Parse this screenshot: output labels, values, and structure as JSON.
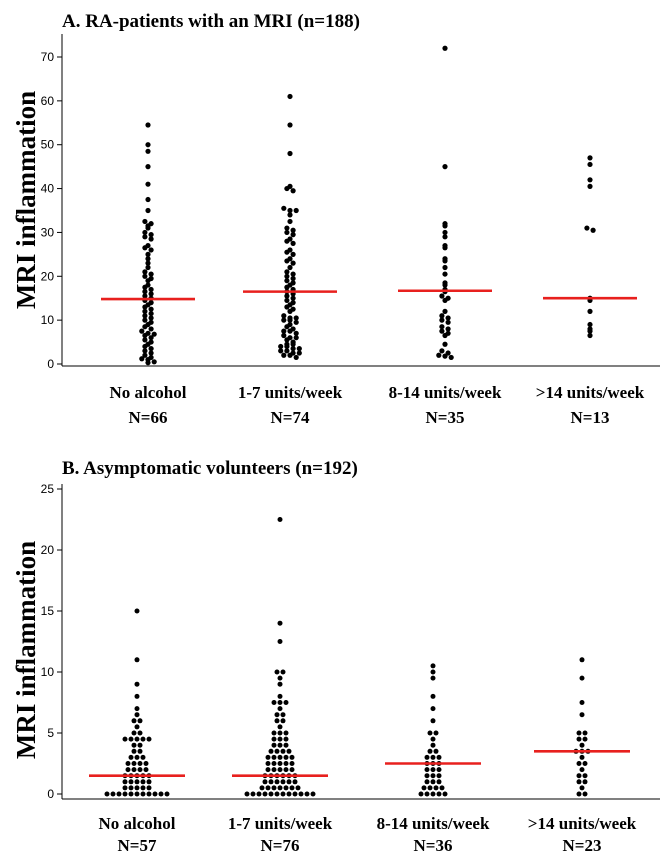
{
  "chart_data": [
    {
      "type": "scatter",
      "title": "A. RA-patients with an MRI (n=188)",
      "xlabel": "",
      "ylabel": "MRI inflammation",
      "ylim": [
        0,
        75
      ],
      "yticks": [
        0,
        10,
        20,
        30,
        40,
        50,
        60,
        70
      ],
      "grid": false,
      "legend": "none",
      "dot_color": "#000000",
      "median_color": "#e8201e",
      "categories": [
        {
          "label": "No alcohol",
          "count_label": "N=66",
          "median": 14.8,
          "values": [
            54.5,
            50,
            48.5,
            45,
            41,
            37.5,
            35,
            32.5,
            32,
            31.5,
            31,
            30,
            29.5,
            29,
            28.5,
            27,
            26.5,
            26,
            25,
            24,
            23,
            22,
            21,
            20.5,
            20,
            19.5,
            19,
            18,
            17.5,
            17,
            16.5,
            16,
            15.5,
            15,
            14.5,
            14,
            13.5,
            13,
            12.5,
            12,
            11.5,
            11,
            10.5,
            10,
            9.5,
            9,
            8.5,
            8,
            7.5,
            7,
            6.8,
            6.5,
            6,
            5.5,
            5,
            4.5,
            4,
            3.5,
            3,
            2.5,
            2,
            1.5,
            1.2,
            1,
            0.5,
            0.3
          ]
        },
        {
          "label": "1-7 units/week",
          "count_label": "N=74",
          "median": 16.5,
          "values": [
            61,
            54.5,
            48,
            40.5,
            40,
            39.5,
            35.5,
            35,
            35,
            34,
            32.5,
            31,
            30.5,
            30,
            29.5,
            28.5,
            28,
            27.5,
            26,
            25.5,
            25,
            24,
            23.5,
            23,
            22,
            21,
            20.5,
            20,
            19.5,
            19,
            18.5,
            18,
            17.5,
            17,
            16.5,
            16,
            15.5,
            15,
            14.5,
            14,
            13.5,
            13,
            12.5,
            12,
            11,
            10.5,
            10.5,
            10,
            10,
            9.5,
            9,
            8.5,
            8,
            7.5,
            7.5,
            7,
            6.5,
            6,
            6,
            5.5,
            5,
            4.5,
            4.5,
            4,
            4,
            3.5,
            3.5,
            3,
            3,
            2.5,
            2.5,
            2,
            2,
            1.5
          ]
        },
        {
          "label": "8-14 units/week",
          "count_label": "N=35",
          "median": 16.7,
          "values": [
            72,
            45,
            32,
            31.5,
            30,
            29,
            27,
            26.5,
            24,
            23.5,
            22,
            20.5,
            18.5,
            18,
            17,
            16.5,
            15.5,
            15,
            14.5,
            12,
            11,
            10.5,
            10,
            9.5,
            8.5,
            8,
            7.5,
            7,
            6.5,
            4.5,
            3,
            2.5,
            2,
            1.8,
            1.5
          ]
        },
        {
          "label": ">14 units/week",
          "count_label": "N=13",
          "median": 15,
          "values": [
            47,
            45.5,
            42,
            40.5,
            31,
            30.5,
            15,
            14.5,
            12,
            9,
            8,
            7.5,
            6.5
          ]
        }
      ]
    },
    {
      "type": "scatter",
      "title": "B. Asymptomatic volunteers (n=192)",
      "xlabel": "",
      "ylabel": "MRI inflammation",
      "ylim": [
        0,
        25
      ],
      "yticks": [
        0,
        5,
        10,
        15,
        20,
        25
      ],
      "grid": false,
      "legend": "none",
      "dot_color": "#000000",
      "median_color": "#e8201e",
      "categories": [
        {
          "label": "No alcohol",
          "count_label": "N=57",
          "median": 1.5,
          "values": [
            15,
            11,
            9,
            8,
            7,
            6.5,
            6,
            6,
            5.5,
            5,
            5,
            4.5,
            4.5,
            4.5,
            4.5,
            4.5,
            4,
            4,
            3.5,
            3.5,
            3,
            3,
            3,
            2.5,
            2.5,
            2.5,
            2.5,
            2,
            2,
            2,
            2,
            1.5,
            1.5,
            1.5,
            1.5,
            1.5,
            1,
            1,
            1,
            1,
            1,
            0.5,
            0.5,
            0.5,
            0.5,
            0.5,
            0,
            0,
            0,
            0,
            0,
            0,
            0,
            0,
            0,
            0,
            0
          ]
        },
        {
          "label": "1-7 units/week",
          "count_label": "N=76",
          "median": 1.5,
          "values": [
            22.5,
            14,
            12.5,
            10,
            10,
            9.5,
            9,
            8,
            7.5,
            7.5,
            7.5,
            7,
            6.5,
            6.5,
            6,
            6,
            5.5,
            5,
            5,
            5,
            4.5,
            4.5,
            4.5,
            4,
            4,
            4,
            3.5,
            3.5,
            3.5,
            3.5,
            3,
            3,
            3,
            3,
            3,
            2.5,
            2.5,
            2.5,
            2.5,
            2.5,
            2,
            2,
            2,
            2,
            2,
            1.5,
            1.5,
            1.5,
            1.5,
            1.5,
            1.5,
            1,
            1,
            1,
            1,
            1,
            1,
            0.5,
            0.5,
            0.5,
            0.5,
            0.5,
            0.5,
            0.5,
            0,
            0,
            0,
            0,
            0,
            0,
            0,
            0,
            0,
            0,
            0,
            0
          ]
        },
        {
          "label": "8-14 units/week",
          "count_label": "N=36",
          "median": 2.5,
          "values": [
            10.5,
            10,
            9.5,
            8,
            7,
            6,
            5,
            5,
            4.5,
            4,
            3.5,
            3.5,
            3,
            3,
            3,
            2.5,
            2.5,
            2.5,
            2,
            2,
            2,
            1.5,
            1.5,
            1.5,
            1,
            1,
            1,
            0.5,
            0.5,
            0.5,
            0.5,
            0,
            0,
            0,
            0,
            0
          ]
        },
        {
          "label": ">14 units/week",
          "count_label": "N=23",
          "median": 3.5,
          "values": [
            11,
            9.5,
            7.5,
            6.5,
            5,
            5,
            4.5,
            4.5,
            4,
            3.5,
            3.5,
            3.5,
            3,
            2.5,
            2.5,
            2,
            1.5,
            1.5,
            1,
            1,
            0.5,
            0,
            0
          ]
        }
      ]
    }
  ]
}
